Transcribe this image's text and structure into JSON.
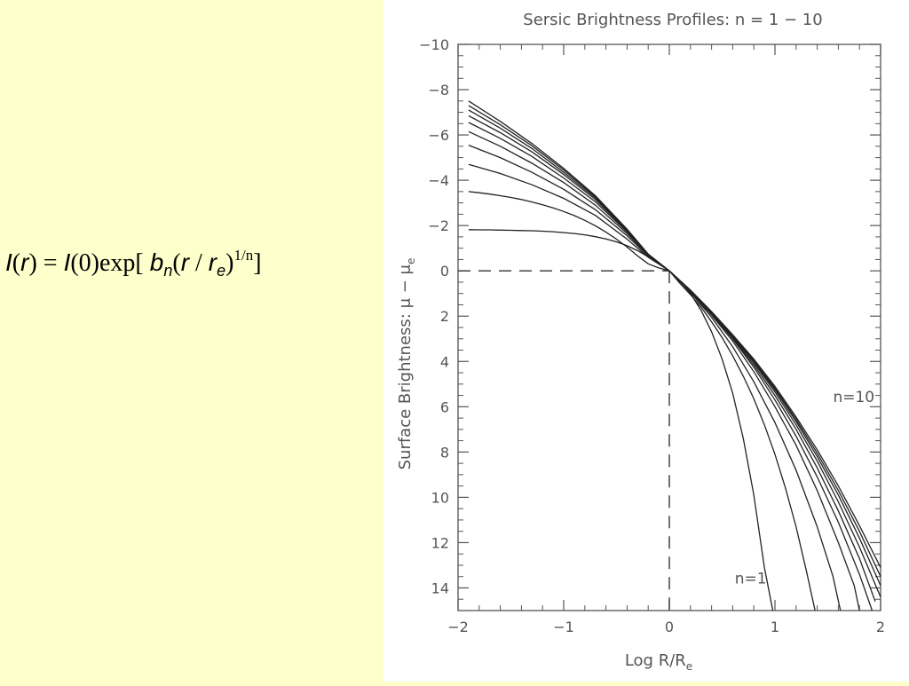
{
  "formula": {
    "i1": "I",
    "p1": "(",
    "r1": "r",
    "p2": ")",
    "eq": " = ",
    "i2": "I",
    "zero": "(0)",
    "exp": "exp[ ",
    "b": "b",
    "n_sub": "n",
    "p3": "(",
    "r2": "r",
    "slash": " / ",
    "r3": "r",
    "e_sub": "e",
    "p4": ")",
    "power": "1/n",
    "close": "]"
  },
  "chart_data": {
    "type": "line",
    "title": "Sersic Brightness Profiles: n = 1 − 10",
    "xlabel": "Log R/R",
    "xlabel_sub": "e",
    "ylabel": "Surface Brightness:  μ − μ",
    "ylabel_sub": "e",
    "xlim": [
      -2,
      2
    ],
    "ylim": [
      -10,
      15
    ],
    "y_inverted": true,
    "xticks": [
      -2,
      -1,
      0,
      1,
      2
    ],
    "xtick_labels": [
      "−2",
      "−1",
      "0",
      "1",
      "2"
    ],
    "yticks": [
      -10,
      -8,
      -6,
      -4,
      -2,
      0,
      2,
      4,
      6,
      8,
      10,
      12,
      14
    ],
    "ytick_labels": [
      "−10",
      "−8",
      "−6",
      "−4",
      "−2",
      "0",
      "2",
      "4",
      "6",
      "8",
      "10",
      "12",
      "14"
    ],
    "grid": false,
    "reference_lines": [
      {
        "orientation": "horizontal",
        "y": 0,
        "x_from": -2,
        "x_to": 0,
        "style": "dashed"
      },
      {
        "orientation": "vertical",
        "x": 0,
        "y_from": 0,
        "y_to": 15,
        "style": "dashed"
      }
    ],
    "annotations": [
      {
        "text": "n=10",
        "x": 1.55,
        "y": 5.8
      },
      {
        "text": "n=1",
        "x": 0.62,
        "y": 13.8
      }
    ],
    "series": [
      {
        "n": 1,
        "x": [
          -1.9,
          -1.8,
          -1.7,
          -1.6,
          -1.5,
          -1.4,
          -1.3,
          -1.2,
          -1.1,
          -1.0,
          -0.9,
          -0.8,
          -0.7,
          -0.6,
          -0.5,
          -0.4,
          -0.3,
          -0.2,
          -0.1,
          0.0,
          0.1,
          0.2,
          0.3,
          0.4,
          0.5,
          0.6,
          0.7,
          0.8,
          0.9,
          0.98
        ],
        "y": [
          -1.82,
          -1.81,
          -1.81,
          -1.8,
          -1.79,
          -1.78,
          -1.77,
          -1.75,
          -1.73,
          -1.69,
          -1.65,
          -1.59,
          -1.51,
          -1.41,
          -1.28,
          -1.11,
          -0.89,
          -0.62,
          -0.32,
          0.0,
          0.43,
          1.0,
          1.74,
          2.69,
          3.9,
          5.4,
          7.4,
          9.9,
          13.1,
          15.0
        ]
      },
      {
        "n": 2,
        "x": [
          -1.9,
          -1.8,
          -1.7,
          -1.6,
          -1.5,
          -1.4,
          -1.3,
          -1.2,
          -1.1,
          -1.0,
          -0.9,
          -0.8,
          -0.7,
          -0.6,
          -0.5,
          -0.4,
          -0.3,
          -0.2,
          -0.1,
          0.0,
          0.1,
          0.2,
          0.3,
          0.4,
          0.5,
          0.6,
          0.7,
          0.8,
          0.9,
          1.0,
          1.1,
          1.2,
          1.3,
          1.38
        ],
        "y": [
          -3.5,
          -3.45,
          -3.39,
          -3.32,
          -3.24,
          -3.15,
          -3.04,
          -2.92,
          -2.78,
          -2.62,
          -2.44,
          -2.23,
          -1.99,
          -1.71,
          -1.4,
          -1.05,
          -0.66,
          -0.31,
          -0.13,
          0.0,
          0.55,
          1.05,
          1.6,
          2.25,
          2.95,
          3.75,
          4.65,
          5.65,
          6.8,
          8.1,
          9.6,
          11.3,
          13.3,
          15.0
        ]
      },
      {
        "n": 3,
        "x": [
          -1.9,
          -1.6,
          -1.3,
          -1.0,
          -0.7,
          -0.4,
          -0.2,
          0.0,
          0.2,
          0.4,
          0.6,
          0.8,
          1.0,
          1.2,
          1.4,
          1.55,
          1.62
        ],
        "y": [
          -4.7,
          -4.3,
          -3.8,
          -3.2,
          -2.45,
          -1.4,
          -0.6,
          0.0,
          0.95,
          2.05,
          3.35,
          4.9,
          6.7,
          8.8,
          11.3,
          13.5,
          15.0
        ]
      },
      {
        "n": 4,
        "x": [
          -1.9,
          -1.6,
          -1.3,
          -1.0,
          -0.7,
          -0.4,
          -0.2,
          0.0,
          0.2,
          0.4,
          0.6,
          0.8,
          1.0,
          1.2,
          1.4,
          1.6,
          1.75,
          1.8
        ],
        "y": [
          -5.55,
          -5.0,
          -4.35,
          -3.6,
          -2.7,
          -1.55,
          -0.65,
          0.0,
          0.92,
          1.95,
          3.1,
          4.45,
          6.0,
          7.7,
          9.7,
          12.0,
          13.9,
          15.0
        ]
      },
      {
        "n": 5,
        "x": [
          -1.9,
          -1.6,
          -1.3,
          -1.0,
          -0.7,
          -0.4,
          -0.2,
          0.0,
          0.2,
          0.4,
          0.6,
          0.8,
          1.0,
          1.2,
          1.4,
          1.6,
          1.8,
          1.92
        ],
        "y": [
          -6.15,
          -5.5,
          -4.75,
          -3.9,
          -2.9,
          -1.65,
          -0.68,
          0.0,
          0.9,
          1.9,
          3.0,
          4.25,
          5.7,
          7.3,
          9.1,
          11.1,
          13.4,
          15.0
        ]
      },
      {
        "n": 6,
        "x": [
          -1.9,
          -1.6,
          -1.3,
          -1.0,
          -0.7,
          -0.4,
          -0.2,
          0.0,
          0.2,
          0.4,
          0.6,
          0.8,
          1.0,
          1.2,
          1.4,
          1.6,
          1.8,
          1.95
        ],
        "y": [
          -6.55,
          -5.85,
          -5.05,
          -4.1,
          -3.05,
          -1.72,
          -0.7,
          0.0,
          0.89,
          1.87,
          2.95,
          4.15,
          5.5,
          7.0,
          8.7,
          10.6,
          12.7,
          14.6
        ]
      },
      {
        "n": 7,
        "x": [
          -1.9,
          -1.6,
          -1.3,
          -1.0,
          -0.7,
          -0.4,
          -0.2,
          0.0,
          0.2,
          0.4,
          0.6,
          0.8,
          1.0,
          1.2,
          1.4,
          1.6,
          1.8,
          2.0
        ],
        "y": [
          -6.85,
          -6.1,
          -5.25,
          -4.25,
          -3.15,
          -1.76,
          -0.71,
          0.0,
          0.88,
          1.85,
          2.9,
          4.05,
          5.35,
          6.8,
          8.4,
          10.2,
          12.2,
          14.4
        ]
      },
      {
        "n": 8,
        "x": [
          -1.9,
          -1.6,
          -1.3,
          -1.0,
          -0.7,
          -0.4,
          -0.2,
          0.0,
          0.2,
          0.4,
          0.6,
          0.8,
          1.0,
          1.2,
          1.4,
          1.6,
          1.8,
          2.0
        ],
        "y": [
          -7.1,
          -6.3,
          -5.4,
          -4.35,
          -3.22,
          -1.79,
          -0.72,
          0.0,
          0.87,
          1.83,
          2.87,
          4.0,
          5.25,
          6.65,
          8.2,
          9.9,
          11.8,
          13.9
        ]
      },
      {
        "n": 9,
        "x": [
          -1.9,
          -1.6,
          -1.3,
          -1.0,
          -0.7,
          -0.4,
          -0.2,
          0.0,
          0.2,
          0.4,
          0.6,
          0.8,
          1.0,
          1.2,
          1.4,
          1.6,
          1.8,
          2.0
        ],
        "y": [
          -7.3,
          -6.45,
          -5.52,
          -4.45,
          -3.28,
          -1.82,
          -0.73,
          0.0,
          0.86,
          1.82,
          2.85,
          3.95,
          5.18,
          6.55,
          8.05,
          9.7,
          11.5,
          13.5
        ]
      },
      {
        "n": 10,
        "x": [
          -1.9,
          -1.6,
          -1.3,
          -1.0,
          -0.7,
          -0.4,
          -0.2,
          0.0,
          0.2,
          0.4,
          0.6,
          0.8,
          1.0,
          1.2,
          1.4,
          1.6,
          1.8,
          2.0
        ],
        "y": [
          -7.5,
          -6.6,
          -5.62,
          -4.52,
          -3.32,
          -1.84,
          -0.74,
          0.0,
          0.85,
          1.8,
          2.82,
          3.9,
          5.1,
          6.45,
          7.9,
          9.5,
          11.25,
          13.1
        ]
      }
    ]
  }
}
